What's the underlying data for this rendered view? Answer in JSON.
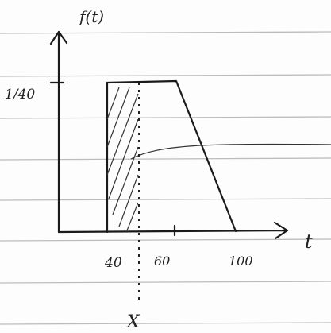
{
  "axes": {
    "y_label": "f(t)",
    "x_label": "t",
    "y_ticks": [
      "1/40"
    ],
    "x_ticks": [
      "40",
      "60",
      "100"
    ]
  },
  "marker": "X"
}
